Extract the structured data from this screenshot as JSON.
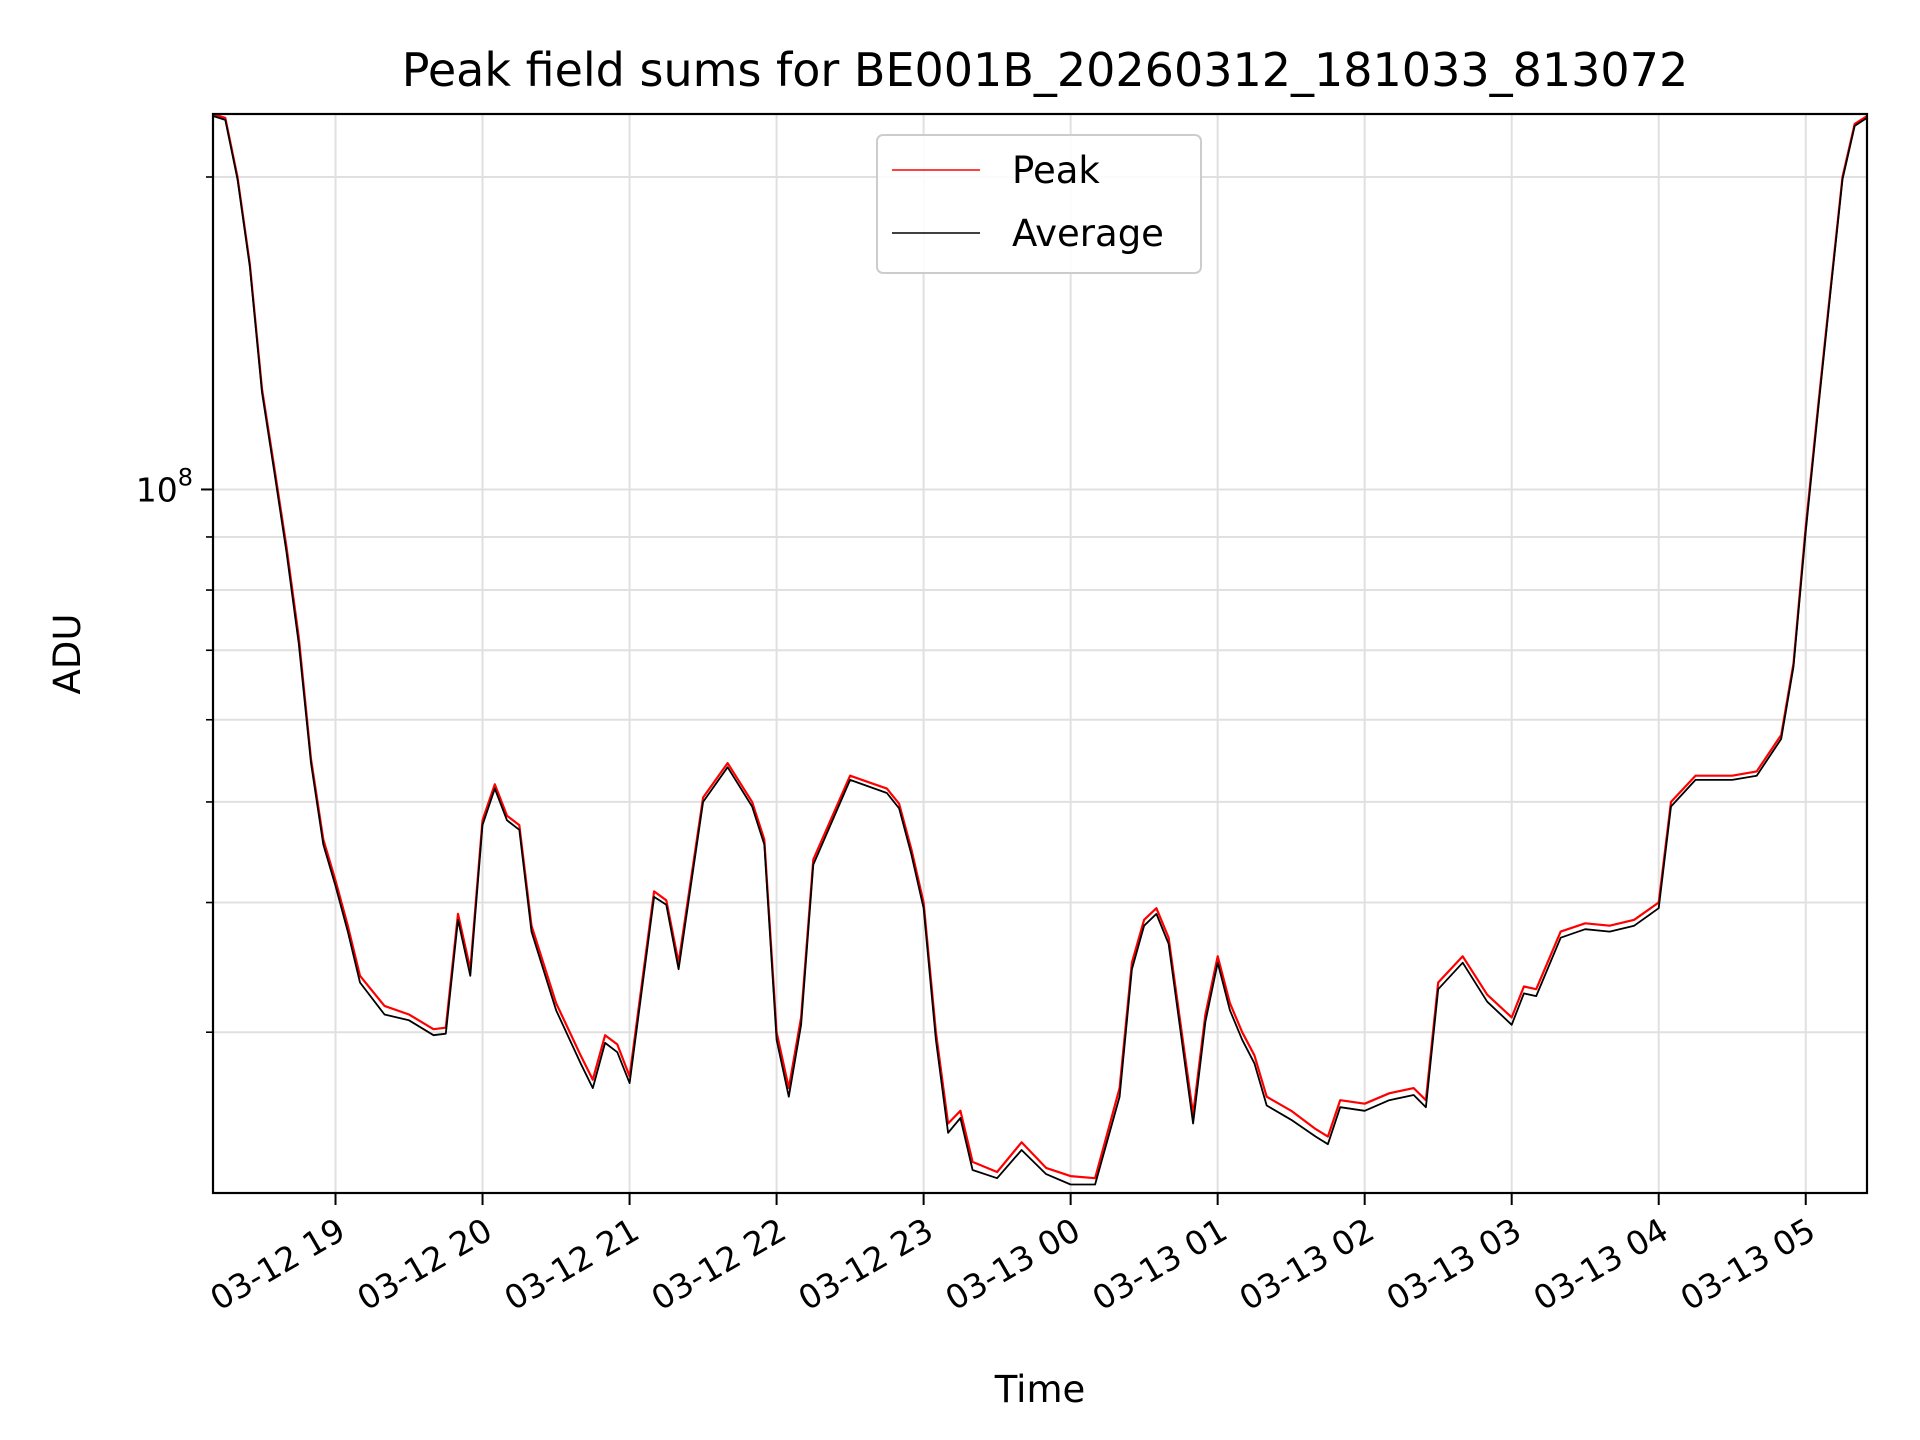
{
  "chart_data": {
    "type": "line",
    "title": "Peak field sums for BE001B_20260312_181033_813072",
    "xlabel": "Time",
    "ylabel": "ADU",
    "yscale": "log",
    "grid": true,
    "legend_position": "top-center",
    "xlim": [
      "03-12 18:10",
      "03-13 05:25"
    ],
    "ylim": [
      21000000,
      230000000
    ],
    "x_ticks": [
      "03-12 19",
      "03-12 20",
      "03-12 21",
      "03-12 22",
      "03-12 23",
      "03-13 00",
      "03-13 01",
      "03-13 02",
      "03-13 03",
      "03-13 04",
      "03-13 05"
    ],
    "y_major_tick": {
      "value": 100000000,
      "base": "10",
      "exponent": "8"
    },
    "series": [
      {
        "name": "Peak",
        "color": "#ff0000",
        "x": [
          "03-12 18:10",
          "03-12 18:15",
          "03-12 18:20",
          "03-12 18:25",
          "03-12 18:30",
          "03-12 18:35",
          "03-12 18:40",
          "03-12 18:45",
          "03-12 18:50",
          "03-12 18:55",
          "03-12 19:00",
          "03-12 19:05",
          "03-12 19:10",
          "03-12 19:20",
          "03-12 19:30",
          "03-12 19:40",
          "03-12 19:45",
          "03-12 19:50",
          "03-12 19:55",
          "03-12 20:00",
          "03-12 20:05",
          "03-12 20:10",
          "03-12 20:15",
          "03-12 20:20",
          "03-12 20:30",
          "03-12 20:40",
          "03-12 20:45",
          "03-12 20:50",
          "03-12 20:55",
          "03-12 21:00",
          "03-12 21:10",
          "03-12 21:15",
          "03-12 21:20",
          "03-12 21:30",
          "03-12 21:40",
          "03-12 21:50",
          "03-12 21:55",
          "03-12 22:00",
          "03-12 22:05",
          "03-12 22:10",
          "03-12 22:15",
          "03-12 22:30",
          "03-12 22:40",
          "03-12 22:45",
          "03-12 22:50",
          "03-12 22:55",
          "03-12 23:00",
          "03-12 23:05",
          "03-12 23:10",
          "03-12 23:15",
          "03-12 23:20",
          "03-12 23:30",
          "03-12 23:40",
          "03-12 23:50",
          "03-13 00:00",
          "03-13 00:10",
          "03-13 00:20",
          "03-13 00:25",
          "03-13 00:30",
          "03-13 00:35",
          "03-13 00:40",
          "03-13 00:50",
          "03-13 00:55",
          "03-13 01:00",
          "03-13 01:05",
          "03-13 01:10",
          "03-13 01:15",
          "03-13 01:20",
          "03-13 01:30",
          "03-13 01:40",
          "03-13 01:45",
          "03-13 01:50",
          "03-13 02:00",
          "03-13 02:10",
          "03-13 02:20",
          "03-13 02:25",
          "03-13 02:30",
          "03-13 02:40",
          "03-13 02:50",
          "03-13 03:00",
          "03-13 03:05",
          "03-13 03:10",
          "03-13 03:20",
          "03-13 03:30",
          "03-13 03:40",
          "03-13 03:50",
          "03-13 04:00",
          "03-13 04:05",
          "03-13 04:15",
          "03-13 04:30",
          "03-13 04:40",
          "03-13 04:50",
          "03-13 04:55",
          "03-13 05:00",
          "03-13 05:05",
          "03-13 05:10",
          "03-13 05:15",
          "03-13 05:20",
          "03-13 05:25"
        ],
        "values": [
          230000000,
          228000000,
          200000000,
          165000000,
          125000000,
          105000000,
          88000000,
          72000000,
          55000000,
          46000000,
          42000000,
          38000000,
          34000000,
          31800000,
          31200000,
          30200000,
          30300000,
          39000000,
          34500000,
          48000000,
          52000000,
          48500000,
          47500000,
          38000000,
          32000000,
          28500000,
          27000000,
          29800000,
          29200000,
          27200000,
          41000000,
          40200000,
          35000000,
          50500000,
          54500000,
          50000000,
          46000000,
          30000000,
          26500000,
          31000000,
          44000000,
          53000000,
          52000000,
          51500000,
          49800000,
          45000000,
          40000000,
          30000000,
          24500000,
          25200000,
          22500000,
          22000000,
          23500000,
          22200000,
          21800000,
          21700000,
          26500000,
          35000000,
          38500000,
          39500000,
          37000000,
          25000000,
          31200000,
          35500000,
          32000000,
          30000000,
          28500000,
          26000000,
          25200000,
          24200000,
          23800000,
          25800000,
          25600000,
          26200000,
          26500000,
          25800000,
          33500000,
          35500000,
          32600000,
          31000000,
          33200000,
          33000000,
          37500000,
          38200000,
          38000000,
          38500000,
          40000000,
          50000000,
          53000000,
          53000000,
          53500000,
          58000000,
          68000000,
          92000000,
          120000000,
          155000000,
          200000000,
          225000000,
          229000000
        ]
      },
      {
        "name": "Average",
        "color": "#000000",
        "x": [
          "03-12 18:10",
          "03-12 18:15",
          "03-12 18:20",
          "03-12 18:25",
          "03-12 18:30",
          "03-12 18:35",
          "03-12 18:40",
          "03-12 18:45",
          "03-12 18:50",
          "03-12 18:55",
          "03-12 19:00",
          "03-12 19:05",
          "03-12 19:10",
          "03-12 19:20",
          "03-12 19:30",
          "03-12 19:40",
          "03-12 19:45",
          "03-12 19:50",
          "03-12 19:55",
          "03-12 20:00",
          "03-12 20:05",
          "03-12 20:10",
          "03-12 20:15",
          "03-12 20:20",
          "03-12 20:30",
          "03-12 20:40",
          "03-12 20:45",
          "03-12 20:50",
          "03-12 20:55",
          "03-12 21:00",
          "03-12 21:10",
          "03-12 21:15",
          "03-12 21:20",
          "03-12 21:30",
          "03-12 21:40",
          "03-12 21:50",
          "03-12 21:55",
          "03-12 22:00",
          "03-12 22:05",
          "03-12 22:10",
          "03-12 22:15",
          "03-12 22:30",
          "03-12 22:40",
          "03-12 22:45",
          "03-12 22:50",
          "03-12 22:55",
          "03-12 23:00",
          "03-12 23:05",
          "03-12 23:10",
          "03-12 23:15",
          "03-12 23:20",
          "03-12 23:30",
          "03-12 23:40",
          "03-12 23:50",
          "03-13 00:00",
          "03-13 00:10",
          "03-13 00:20",
          "03-13 00:25",
          "03-13 00:30",
          "03-13 00:35",
          "03-13 00:40",
          "03-13 00:50",
          "03-13 00:55",
          "03-13 01:00",
          "03-13 01:05",
          "03-13 01:10",
          "03-13 01:15",
          "03-13 01:20",
          "03-13 01:30",
          "03-13 01:40",
          "03-13 01:45",
          "03-13 01:50",
          "03-13 02:00",
          "03-13 02:10",
          "03-13 02:20",
          "03-13 02:25",
          "03-13 02:30",
          "03-13 02:40",
          "03-13 02:50",
          "03-13 03:00",
          "03-13 03:05",
          "03-13 03:10",
          "03-13 03:20",
          "03-13 03:30",
          "03-13 03:40",
          "03-13 03:50",
          "03-13 04:00",
          "03-13 04:05",
          "03-13 04:15",
          "03-13 04:30",
          "03-13 04:40",
          "03-13 04:50",
          "03-13 04:55",
          "03-13 05:00",
          "03-13 05:05",
          "03-13 05:10",
          "03-13 05:15",
          "03-13 05:20",
          "03-13 05:25"
        ],
        "values": [
          229000000,
          227000000,
          199000000,
          164000000,
          124000000,
          104000000,
          87000000,
          71000000,
          54500000,
          45500000,
          41500000,
          37500000,
          33500000,
          31200000,
          30800000,
          29800000,
          29900000,
          38500000,
          34000000,
          47500000,
          51500000,
          48000000,
          47000000,
          37500000,
          31500000,
          28000000,
          26500000,
          29300000,
          28700000,
          26800000,
          40500000,
          39800000,
          34500000,
          50000000,
          54000000,
          49500000,
          45500000,
          29500000,
          26000000,
          30500000,
          43500000,
          52500000,
          51500000,
          51000000,
          49300000,
          44500000,
          39500000,
          29500000,
          24000000,
          24800000,
          22100000,
          21700000,
          23100000,
          21900000,
          21400000,
          21400000,
          26000000,
          34500000,
          38000000,
          39000000,
          36500000,
          24500000,
          30700000,
          35000000,
          31500000,
          29500000,
          28000000,
          25500000,
          24700000,
          23800000,
          23400000,
          25400000,
          25200000,
          25800000,
          26100000,
          25400000,
          33000000,
          35000000,
          32100000,
          30500000,
          32700000,
          32500000,
          37000000,
          37700000,
          37500000,
          38000000,
          39500000,
          49500000,
          52500000,
          52500000,
          53000000,
          57500000,
          67500000,
          91000000,
          119000000,
          154000000,
          199000000,
          224000000,
          228000000
        ]
      }
    ]
  }
}
